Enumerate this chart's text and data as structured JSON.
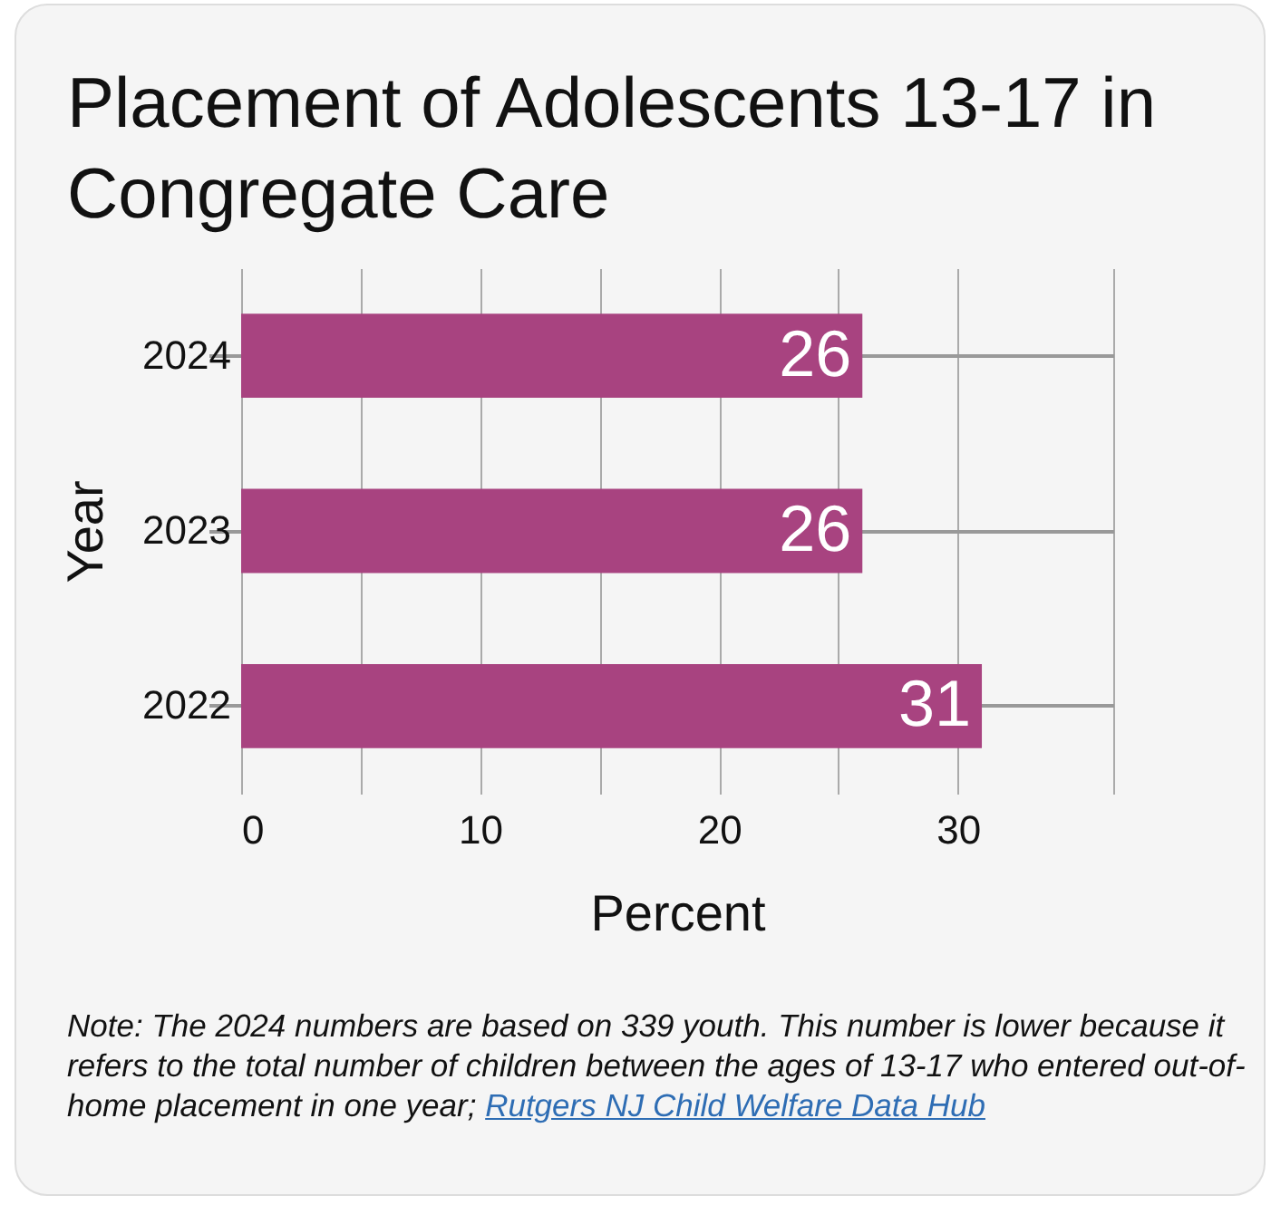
{
  "chart_data": {
    "type": "bar",
    "title": "Placement of Adolescents 13-17 in Congregate Care",
    "xlabel": "Percent",
    "ylabel": "Year",
    "orientation": "horizontal",
    "categories": [
      "2024",
      "2023",
      "2022"
    ],
    "values": [
      26,
      26,
      31
    ],
    "color": "#a84380",
    "data_labels": true,
    "xlim": [
      0,
      36.5
    ],
    "xticks": [
      0,
      {
        "value": 5,
        "label": null
      },
      10,
      {
        "value": 15,
        "label": null
      },
      20,
      {
        "value": 25,
        "label": null
      },
      30,
      {
        "value": 36.5,
        "label": null
      }
    ],
    "grid": true,
    "annotations": [
      "Note:  The 2024 numbers are based on 339 youth. This number is lower because it refers to the total number of children between the ages of 13-17 who entered out-of-home placement in one year;",
      "Rutgers NJ Child Welfare Data Hub"
    ]
  }
}
